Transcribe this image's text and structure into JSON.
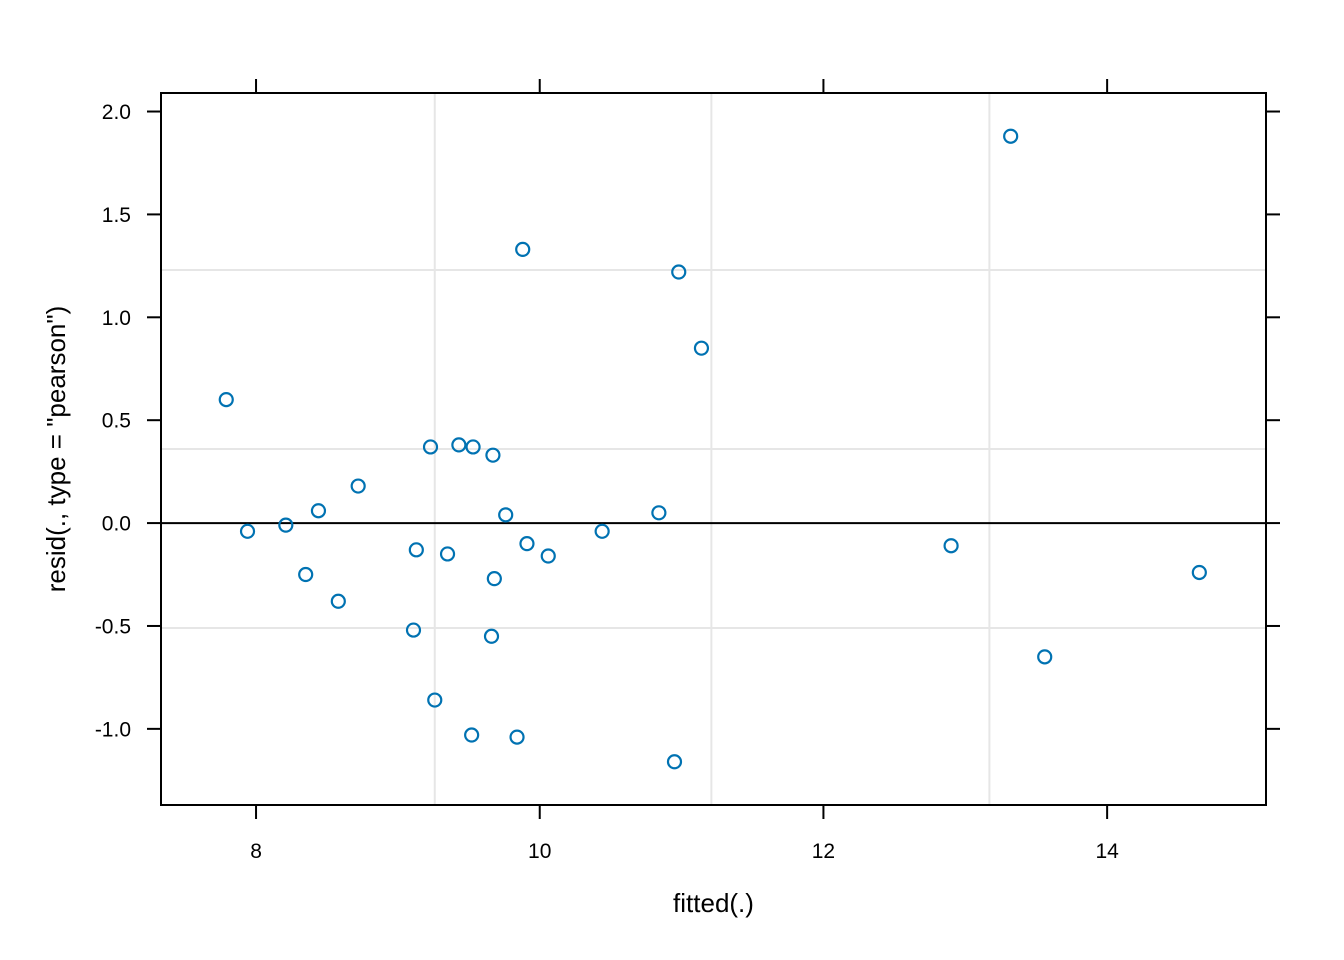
{
  "chart_data": {
    "type": "scatter",
    "title": "",
    "xlabel": "fitted(.)",
    "ylabel": "resid(., type = \"pearson\")",
    "xlim": [
      7.33,
      15.12
    ],
    "ylim": [
      -1.37,
      2.09
    ],
    "x_ticks": [
      8,
      10,
      12,
      14
    ],
    "y_ticks": [
      -1.0,
      -0.5,
      0.0,
      0.5,
      1.0,
      1.5,
      2.0
    ],
    "x_tick_labels": [
      "8",
      "10",
      "12",
      "14"
    ],
    "y_tick_labels": [
      "-1.0",
      "-0.5",
      "0.0",
      "0.5",
      "1.0",
      "1.5",
      "2.0"
    ],
    "x_grid": [
      9.26,
      11.21,
      13.17
    ],
    "y_grid": [
      -0.51,
      0.36,
      1.23
    ],
    "reference_line_y": 0,
    "grid": true,
    "colors": {
      "point": "#0072B2",
      "grid": "#e6e6e6",
      "axis": "#000000"
    },
    "points": [
      {
        "x": 7.79,
        "y": 0.6
      },
      {
        "x": 7.94,
        "y": -0.04
      },
      {
        "x": 8.21,
        "y": -0.01
      },
      {
        "x": 8.35,
        "y": -0.25
      },
      {
        "x": 8.44,
        "y": 0.06
      },
      {
        "x": 8.58,
        "y": -0.38
      },
      {
        "x": 8.72,
        "y": 0.18
      },
      {
        "x": 9.11,
        "y": -0.52
      },
      {
        "x": 9.13,
        "y": -0.13
      },
      {
        "x": 9.23,
        "y": 0.37
      },
      {
        "x": 9.26,
        "y": -0.86
      },
      {
        "x": 9.35,
        "y": -0.15
      },
      {
        "x": 9.43,
        "y": 0.38
      },
      {
        "x": 9.52,
        "y": -1.03
      },
      {
        "x": 9.53,
        "y": 0.37
      },
      {
        "x": 9.66,
        "y": -0.55
      },
      {
        "x": 9.67,
        "y": 0.33
      },
      {
        "x": 9.68,
        "y": -0.27
      },
      {
        "x": 9.76,
        "y": 0.04
      },
      {
        "x": 9.84,
        "y": -1.04
      },
      {
        "x": 9.88,
        "y": 1.33
      },
      {
        "x": 9.91,
        "y": -0.1
      },
      {
        "x": 10.06,
        "y": -0.16
      },
      {
        "x": 10.44,
        "y": -0.04
      },
      {
        "x": 10.84,
        "y": 0.05
      },
      {
        "x": 10.95,
        "y": -1.16
      },
      {
        "x": 10.98,
        "y": 1.22
      },
      {
        "x": 11.14,
        "y": 0.85
      },
      {
        "x": 12.9,
        "y": -0.11
      },
      {
        "x": 13.32,
        "y": 1.88
      },
      {
        "x": 13.56,
        "y": -0.65
      },
      {
        "x": 14.65,
        "y": -0.24
      }
    ]
  }
}
